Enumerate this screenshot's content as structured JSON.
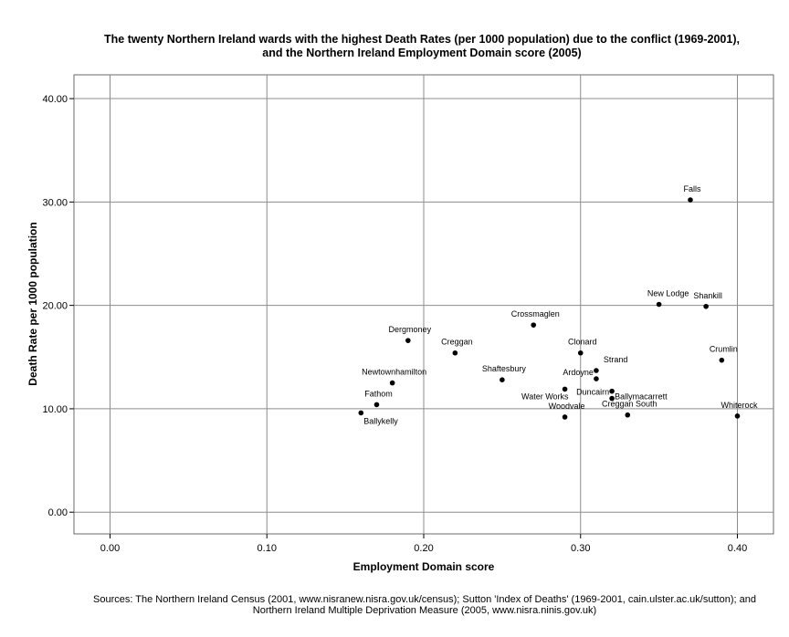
{
  "chart_data": {
    "type": "scatter",
    "title_lines": [
      "The twenty Northern Ireland wards with the highest Death Rates (per 1000 population) due to the conflict (1969-2001),",
      "and the Northern Ireland Employment Domain score (2005)"
    ],
    "xlabel": "Employment Domain score",
    "ylabel": "Death Rate per 1000 population",
    "xlim": [
      -0.023,
      0.423
    ],
    "ylim": [
      -2.1,
      42.3
    ],
    "x_ticks": [
      0.0,
      0.1,
      0.2,
      0.3,
      0.4
    ],
    "x_tick_labels": [
      "0.00",
      "0.10",
      "0.20",
      "0.30",
      "0.40"
    ],
    "y_ticks": [
      0,
      10,
      20,
      30,
      40
    ],
    "y_tick_labels": [
      "0.00",
      "10.00",
      "20.00",
      "30.00",
      "40.00"
    ],
    "grid": true,
    "points": [
      {
        "name": "Falls",
        "x": 0.37,
        "y": 30.2,
        "label_pos": "above"
      },
      {
        "name": "New Lodge",
        "x": 0.35,
        "y": 20.1,
        "label_pos": "above-left"
      },
      {
        "name": "Shankill",
        "x": 0.38,
        "y": 19.9,
        "label_pos": "above"
      },
      {
        "name": "Crossmaglen",
        "x": 0.27,
        "y": 18.1,
        "label_pos": "above"
      },
      {
        "name": "Dergmoney",
        "x": 0.19,
        "y": 16.6,
        "label_pos": "above"
      },
      {
        "name": "Creggan",
        "x": 0.22,
        "y": 15.4,
        "label_pos": "above"
      },
      {
        "name": "Clonard",
        "x": 0.3,
        "y": 15.4,
        "label_pos": "above"
      },
      {
        "name": "Crumlin",
        "x": 0.39,
        "y": 14.7,
        "label_pos": "above"
      },
      {
        "name": "Strand",
        "x": 0.31,
        "y": 13.7,
        "label_pos": "above-right"
      },
      {
        "name": "Ardoyne",
        "x": 0.31,
        "y": 12.9,
        "label_pos": "left"
      },
      {
        "name": "Shaftesbury",
        "x": 0.25,
        "y": 12.8,
        "label_pos": "above"
      },
      {
        "name": "Newtownhamilton",
        "x": 0.18,
        "y": 12.5,
        "label_pos": "above"
      },
      {
        "name": "Water Works",
        "x": 0.29,
        "y": 11.9,
        "label_pos": "below-left"
      },
      {
        "name": "Ballymacarrett",
        "x": 0.32,
        "y": 11.7,
        "label_pos": "right"
      },
      {
        "name": "Duncairn",
        "x": 0.32,
        "y": 11.0,
        "label_pos": "left"
      },
      {
        "name": "Fathom",
        "x": 0.17,
        "y": 10.4,
        "label_pos": "above"
      },
      {
        "name": "Creggan South",
        "x": 0.33,
        "y": 9.4,
        "label_pos": "above"
      },
      {
        "name": "Woodvale",
        "x": 0.29,
        "y": 9.2,
        "label_pos": "above"
      },
      {
        "name": "Whiterock",
        "x": 0.4,
        "y": 9.3,
        "label_pos": "above"
      },
      {
        "name": "Ballykelly",
        "x": 0.16,
        "y": 9.6,
        "label_pos": "below-right"
      }
    ]
  },
  "footer": {
    "sources_lines": [
      "Sources: The Northern Ireland Census (2001, www.nisranew.nisra.gov.uk/census); Sutton 'Index of Deaths' (1969-2001, cain.ulster.ac.uk/sutton); and",
      "Northern Ireland Multiple Deprivation Measure (2005, www.nisra.ninis.gov.uk)"
    ]
  }
}
